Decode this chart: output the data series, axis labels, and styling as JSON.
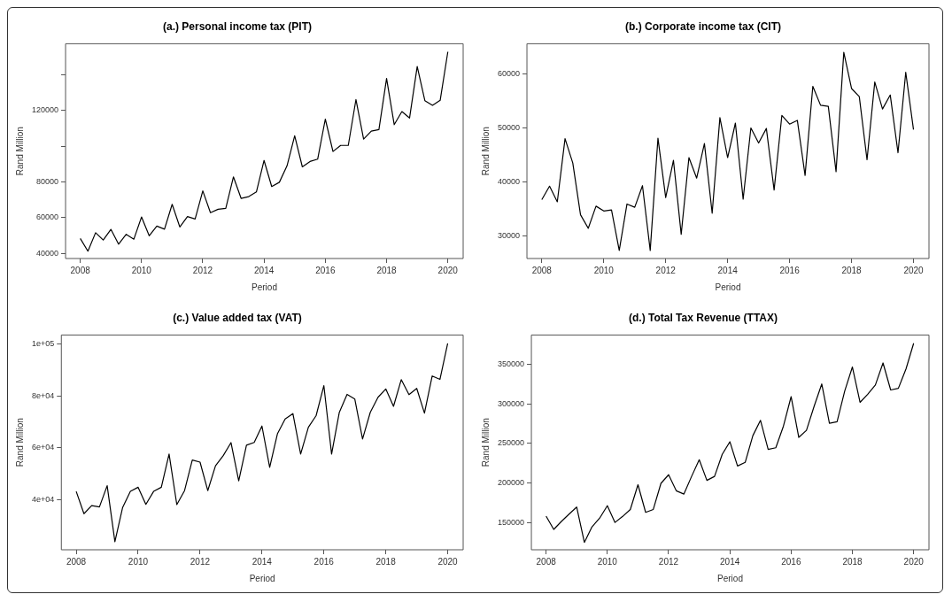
{
  "chart_data": [
    {
      "type": "line",
      "title": "(a.) Personal income tax (PIT)",
      "xlabel": "Period",
      "ylabel": "Rand Million",
      "marker": "none",
      "grid": false,
      "xlim": [
        2007.52,
        2020.5
      ],
      "xticks": [
        2008,
        2010,
        2012,
        2014,
        2016,
        2018,
        2020
      ],
      "ylim": [
        37200,
        157200
      ],
      "yticks": [
        40000,
        60000,
        80000,
        {
          "value": 100000,
          "label": null
        },
        120000,
        {
          "value": 140000,
          "label": null
        }
      ],
      "x": [
        2008,
        2008.25,
        2008.5,
        2008.75,
        2009,
        2009.25,
        2009.5,
        2009.75,
        2010,
        2010.25,
        2010.5,
        2010.75,
        2011,
        2011.25,
        2011.5,
        2011.75,
        2012,
        2012.25,
        2012.5,
        2012.75,
        2013,
        2013.25,
        2013.5,
        2013.75,
        2014,
        2014.25,
        2014.5,
        2014.75,
        2015,
        2015.25,
        2015.5,
        2015.75,
        2016,
        2016.25,
        2016.5,
        2016.75,
        2017,
        2017.25,
        2017.5,
        2017.75,
        2018,
        2018.25,
        2018.5,
        2018.75,
        2019,
        2019.25,
        2019.5,
        2019.75,
        2020
      ],
      "series": [
        {
          "color": "#000000",
          "values": [
            48400,
            41300,
            51600,
            47500,
            53500,
            45200,
            50700,
            48000,
            60400,
            49900,
            55300,
            53600,
            67500,
            54800,
            60600,
            59300,
            75000,
            62800,
            64700,
            65200,
            82800,
            70800,
            71800,
            74400,
            92000,
            77400,
            79800,
            89000,
            105800,
            88400,
            91400,
            92700,
            115100,
            97000,
            100400,
            100400,
            126000,
            103900,
            108400,
            109200,
            137800,
            112000,
            119300,
            115700,
            144500,
            125400,
            122800,
            125600,
            152700
          ]
        }
      ]
    },
    {
      "type": "line",
      "title": "(b.) Corporate income tax (CIT)",
      "xlabel": "Period",
      "ylabel": "Rand Million",
      "marker": "none",
      "grid": false,
      "xlim": [
        2007.52,
        2020.5
      ],
      "xticks": [
        2008,
        2010,
        2012,
        2014,
        2016,
        2018,
        2020
      ],
      "ylim": [
        25800,
        65600
      ],
      "yticks": [
        30000,
        40000,
        50000,
        60000
      ],
      "x": [
        2008,
        2008.25,
        2008.5,
        2008.75,
        2009,
        2009.25,
        2009.5,
        2009.75,
        2010,
        2010.25,
        2010.5,
        2010.75,
        2011,
        2011.25,
        2011.5,
        2011.75,
        2012,
        2012.25,
        2012.5,
        2012.75,
        2013,
        2013.25,
        2013.5,
        2013.75,
        2014,
        2014.25,
        2014.5,
        2014.75,
        2015,
        2015.25,
        2015.5,
        2015.75,
        2016,
        2016.25,
        2016.5,
        2016.75,
        2017,
        2017.25,
        2017.5,
        2017.75,
        2018,
        2018.25,
        2018.5,
        2018.75,
        2019,
        2019.25,
        2019.5,
        2019.75,
        2020
      ],
      "series": [
        {
          "color": "#000000",
          "values": [
            36700,
            39200,
            36300,
            48000,
            43500,
            33900,
            31400,
            35500,
            34600,
            34800,
            27300,
            35900,
            35300,
            39300,
            27300,
            48100,
            37100,
            44000,
            30300,
            44500,
            40700,
            47100,
            34200,
            51900,
            44500,
            50900,
            36800,
            50000,
            47200,
            49900,
            38500,
            52300,
            50700,
            51400,
            41200,
            57700,
            54200,
            54000,
            41900,
            64000,
            57300,
            55800,
            44100,
            58500,
            53500,
            56100,
            45400,
            60300,
            49700
          ]
        }
      ]
    },
    {
      "type": "line",
      "title": "(c.) Value added tax (VAT)",
      "xlabel": "Period",
      "ylabel": "Rand Million",
      "marker": "none",
      "grid": false,
      "xlim": [
        2007.52,
        2020.5
      ],
      "xticks": [
        2008,
        2010,
        2012,
        2014,
        2016,
        2018,
        2020
      ],
      "ylim": [
        20700,
        103500
      ],
      "yticks": [
        {
          "value": 40000,
          "label": "4e+04"
        },
        {
          "value": 60000,
          "label": "6e+04"
        },
        {
          "value": 80000,
          "label": "8e+04"
        },
        {
          "value": 100000,
          "label": "1e+05"
        }
      ],
      "x": [
        2008,
        2008.25,
        2008.5,
        2008.75,
        2009,
        2009.25,
        2009.5,
        2009.75,
        2010,
        2010.25,
        2010.5,
        2010.75,
        2011,
        2011.25,
        2011.5,
        2011.75,
        2012,
        2012.25,
        2012.5,
        2012.75,
        2013,
        2013.25,
        2013.5,
        2013.75,
        2014,
        2014.25,
        2014.5,
        2014.75,
        2015,
        2015.25,
        2015.5,
        2015.75,
        2016,
        2016.25,
        2016.5,
        2016.75,
        2017,
        2017.25,
        2017.5,
        2017.75,
        2018,
        2018.25,
        2018.5,
        2018.75,
        2019,
        2019.25,
        2019.5,
        2019.75,
        2020
      ],
      "series": [
        {
          "color": "#000000",
          "values": [
            43200,
            34600,
            37700,
            37200,
            45400,
            23800,
            37000,
            43200,
            44800,
            38200,
            43200,
            44800,
            57600,
            38100,
            43500,
            55300,
            54500,
            43500,
            53100,
            57000,
            62000,
            47300,
            61000,
            62100,
            68400,
            52500,
            65400,
            71100,
            73200,
            57600,
            67900,
            72400,
            84000,
            57600,
            73700,
            80600,
            78800,
            63400,
            73700,
            79500,
            82700,
            76000,
            86300,
            80500,
            82900,
            73400,
            87700,
            86400,
            100300
          ]
        }
      ]
    },
    {
      "type": "line",
      "title": "(d.) Total Tax Revenue (TTAX)",
      "xlabel": "Period",
      "ylabel": "Rand Million",
      "marker": "none",
      "grid": false,
      "xlim": [
        2007.52,
        2020.5
      ],
      "xticks": [
        2008,
        2010,
        2012,
        2014,
        2016,
        2018,
        2020
      ],
      "ylim": [
        115900,
        387000
      ],
      "yticks": [
        150000,
        200000,
        250000,
        300000,
        350000
      ],
      "x": [
        2008,
        2008.25,
        2008.5,
        2008.75,
        2009,
        2009.25,
        2009.5,
        2009.75,
        2010,
        2010.25,
        2010.5,
        2010.75,
        2011,
        2011.25,
        2011.5,
        2011.75,
        2012,
        2012.25,
        2012.5,
        2012.75,
        2013,
        2013.25,
        2013.5,
        2013.75,
        2014,
        2014.25,
        2014.5,
        2014.75,
        2015,
        2015.25,
        2015.5,
        2015.75,
        2016,
        2016.25,
        2016.5,
        2016.75,
        2017,
        2017.25,
        2017.5,
        2017.75,
        2018,
        2018.25,
        2018.5,
        2018.75,
        2019,
        2019.25,
        2019.5,
        2019.75,
        2020
      ],
      "series": [
        {
          "color": "#000000",
          "values": [
            158400,
            141600,
            151700,
            160900,
            169800,
            125200,
            144900,
            155900,
            171500,
            150400,
            158000,
            166800,
            198000,
            163100,
            166800,
            199700,
            210600,
            190400,
            186200,
            208500,
            229600,
            203500,
            208500,
            236300,
            252300,
            221600,
            226200,
            259900,
            279300,
            242600,
            244700,
            272100,
            309200,
            257800,
            266600,
            296900,
            325200,
            275500,
            277600,
            316300,
            346600,
            302000,
            312100,
            323900,
            351700,
            317600,
            319700,
            344100,
            376500
          ]
        }
      ]
    }
  ]
}
